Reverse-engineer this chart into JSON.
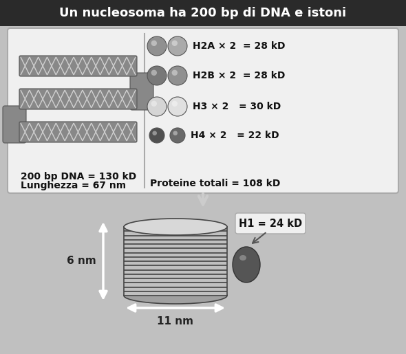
{
  "title": "Un nucleosoma ha 200 bp di DNA e istoni",
  "title_bg": "#2a2a2a",
  "title_color": "#ffffff",
  "bg_color": "#c0c0c0",
  "top_box_bg": "#f0f0f0",
  "top_box_border": "#999999",
  "dna_color": "#888888",
  "dna_stripe_color": "#d0d0d0",
  "left_text1": "200 bp DNA = 130 kD",
  "left_text2": "Lunghezza = 67 nm",
  "histone_rows": [
    {
      "label": "H2A × 2  = 28 kD",
      "c1": "#909090",
      "c2": "#aaaaaa"
    },
    {
      "label": "H2B × 2  = 28 kD",
      "c1": "#707070",
      "c2": "#888888"
    },
    {
      "label": "H3 × 2   = 30 kD",
      "c1": "#cccccc",
      "c2": "#dddddd"
    },
    {
      "label": "H4 × 2   = 22 kD",
      "c1": "#484848",
      "c2": "#606060"
    }
  ],
  "total_label": "Proteine totali = 108 kD",
  "h1_label": "H1 = 24 kD",
  "dim_6nm": "6 nm",
  "dim_11nm": "11 nm"
}
